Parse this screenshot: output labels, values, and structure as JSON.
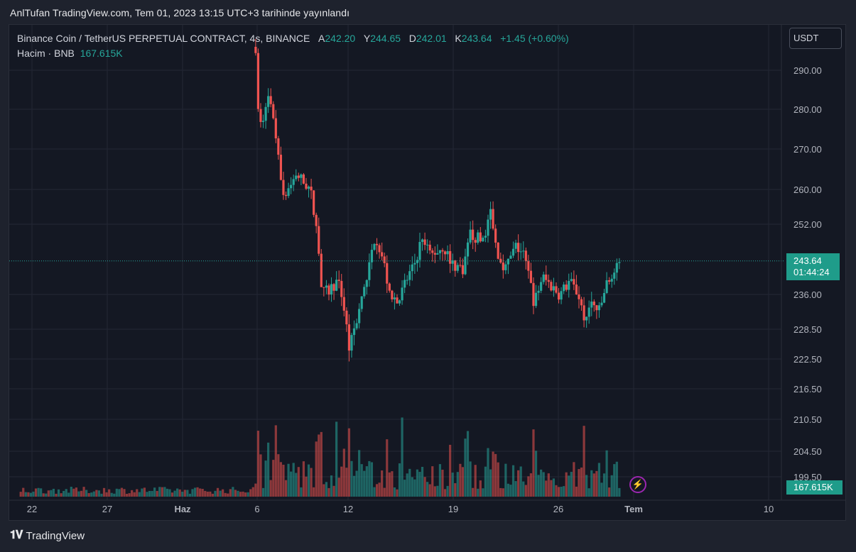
{
  "caption": "AnlTufan TradingView.com, Tem 01, 2023 13:15 UTC+3 tarihinde yayınlandı",
  "legend": {
    "symbol": "Binance Coin / TetherUS PERPETUAL CONTRACT, 4s, BINANCE",
    "open_label": "A",
    "open": "242.20",
    "high_label": "Y",
    "high": "244.65",
    "low_label": "D",
    "low": "242.01",
    "close_label": "K",
    "close": "243.64",
    "change": "+1.45 (+0.60%)",
    "volume_label": "Hacim · BNB",
    "volume_value": "167.615K"
  },
  "currency": "USDT",
  "last_price": "243.64",
  "countdown": "01:44:24",
  "volume_badge": "167.615K",
  "brand": "TradingView",
  "colors": {
    "up": "#26a69a",
    "down": "#ef5350",
    "background": "#141823",
    "grid": "#232734"
  },
  "chart_data": {
    "type": "candlestick",
    "title": "",
    "price_axis_ticks": [
      "290.00",
      "280.00",
      "270.00",
      "260.00",
      "252.00",
      "236.00",
      "228.50",
      "222.50",
      "216.50",
      "210.50",
      "204.50",
      "199.50"
    ],
    "time_axis_ticks": [
      "22",
      "27",
      "Haz",
      "6",
      "12",
      "19",
      "26",
      "Tem",
      "10"
    ],
    "grid": true,
    "last_price": 243.64,
    "segments": [
      {
        "day": 5.9,
        "price": 296
      },
      {
        "day": 6.1,
        "price": 276
      },
      {
        "day": 6.5,
        "price": 278
      },
      {
        "day": 6.7,
        "price": 284
      },
      {
        "day": 7.0,
        "price": 278
      },
      {
        "day": 7.4,
        "price": 270
      },
      {
        "day": 7.7,
        "price": 258
      },
      {
        "day": 8.2,
        "price": 261
      },
      {
        "day": 8.6,
        "price": 264
      },
      {
        "day": 9.0,
        "price": 262
      },
      {
        "day": 9.5,
        "price": 260
      },
      {
        "day": 10.0,
        "price": 249
      },
      {
        "day": 10.3,
        "price": 236
      },
      {
        "day": 10.8,
        "price": 237
      },
      {
        "day": 11.2,
        "price": 239
      },
      {
        "day": 11.6,
        "price": 236
      },
      {
        "day": 12.1,
        "price": 224
      },
      {
        "day": 12.5,
        "price": 230
      },
      {
        "day": 13.0,
        "price": 236
      },
      {
        "day": 13.4,
        "price": 242
      },
      {
        "day": 13.8,
        "price": 250
      },
      {
        "day": 14.3,
        "price": 244
      },
      {
        "day": 14.7,
        "price": 237
      },
      {
        "day": 15.3,
        "price": 234
      },
      {
        "day": 15.8,
        "price": 239
      },
      {
        "day": 16.3,
        "price": 242
      },
      {
        "day": 16.8,
        "price": 248
      },
      {
        "day": 17.5,
        "price": 245
      },
      {
        "day": 18.3,
        "price": 247
      },
      {
        "day": 18.8,
        "price": 243
      },
      {
        "day": 19.6,
        "price": 242
      },
      {
        "day": 20.1,
        "price": 250
      },
      {
        "day": 20.8,
        "price": 248
      },
      {
        "day": 21.4,
        "price": 254
      },
      {
        "day": 21.8,
        "price": 246
      },
      {
        "day": 22.4,
        "price": 242
      },
      {
        "day": 23.1,
        "price": 247
      },
      {
        "day": 23.6,
        "price": 245
      },
      {
        "day": 24.3,
        "price": 234
      },
      {
        "day": 24.8,
        "price": 240
      },
      {
        "day": 25.4,
        "price": 238
      },
      {
        "day": 26.0,
        "price": 236
      },
      {
        "day": 26.6,
        "price": 239
      },
      {
        "day": 27.2,
        "price": 236
      },
      {
        "day": 27.6,
        "price": 231
      },
      {
        "day": 28.1,
        "price": 234
      },
      {
        "day": 28.6,
        "price": 232
      },
      {
        "day": 29.0,
        "price": 238
      },
      {
        "day": 29.4,
        "price": 240
      },
      {
        "day": 29.7,
        "price": 241.5
      },
      {
        "day": 30.0,
        "price": 243.6
      }
    ]
  }
}
